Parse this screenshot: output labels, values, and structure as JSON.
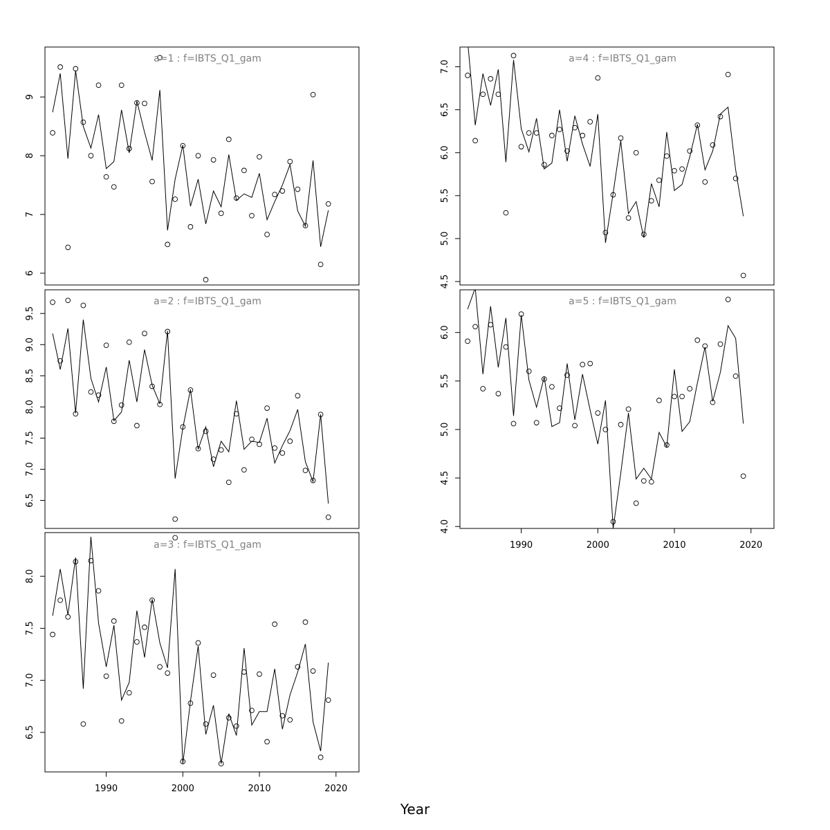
{
  "figure": {
    "xlabel": "Year"
  },
  "chart_data": [
    {
      "type": "line",
      "title": "a=1  :  f=IBTS_Q1_gam",
      "xlabel": "",
      "ylabel": "",
      "xlim": [
        1982,
        2023
      ],
      "ylim": [
        5.8,
        9.85
      ],
      "yticks": [
        "6",
        "7",
        "8",
        "9"
      ],
      "xticks": [],
      "x": [
        1983,
        1984,
        1985,
        1986,
        1987,
        1988,
        1989,
        1990,
        1991,
        1992,
        1993,
        1994,
        1995,
        1996,
        1997,
        1998,
        1999,
        2000,
        2001,
        2002,
        2003,
        2004,
        2005,
        2006,
        2007,
        2008,
        2009,
        2010,
        2011,
        2012,
        2013,
        2014,
        2015,
        2016,
        2017,
        2018,
        2019
      ],
      "series": [
        {
          "values": [
            8.74,
            9.4,
            7.95,
            9.45,
            8.5,
            8.13,
            8.7,
            7.78,
            7.9,
            8.78,
            8.05,
            8.93,
            8.4,
            7.92,
            9.12,
            6.73,
            7.6,
            8.18,
            7.14,
            7.6,
            6.84,
            7.4,
            7.13,
            8.02,
            7.24,
            7.35,
            7.29,
            7.7,
            6.91,
            7.22,
            7.5,
            7.85,
            7.06,
            6.8,
            7.92,
            6.45,
            7.07
          ]
        },
        {
          "values": [
            8.39,
            9.51,
            6.44,
            9.48,
            8.57,
            8.0,
            9.2,
            7.64,
            7.47,
            9.2,
            8.12,
            8.9,
            8.89,
            7.56,
            9.67,
            6.49,
            7.26,
            8.17,
            6.79,
            8.0,
            5.89,
            7.93,
            7.02,
            8.28,
            7.28,
            7.75,
            6.98,
            7.98,
            6.66,
            7.34,
            7.4,
            7.9,
            7.43,
            6.81,
            9.04,
            6.15,
            7.18
          ]
        }
      ]
    },
    {
      "type": "line",
      "title": "a=2  :  f=IBTS_Q1_gam",
      "xlabel": "",
      "ylabel": "",
      "xlim": [
        1982,
        2023
      ],
      "ylim": [
        6.05,
        9.88
      ],
      "yticks": [
        "6.5",
        "7.0",
        "7.5",
        "8.0",
        "8.5",
        "9.0",
        "9.5"
      ],
      "xticks": [],
      "x": [
        1983,
        1984,
        1985,
        1986,
        1987,
        1988,
        1989,
        1990,
        1991,
        1992,
        1993,
        1994,
        1995,
        1996,
        1997,
        1998,
        1999,
        2000,
        2001,
        2002,
        2003,
        2004,
        2005,
        2006,
        2007,
        2008,
        2009,
        2010,
        2011,
        2012,
        2013,
        2014,
        2015,
        2016,
        2017,
        2018,
        2019
      ],
      "series": [
        {
          "values": [
            9.18,
            8.6,
            9.26,
            7.9,
            9.4,
            8.46,
            8.08,
            8.64,
            7.78,
            7.92,
            8.75,
            8.08,
            8.92,
            8.35,
            8.05,
            9.22,
            6.85,
            7.66,
            8.28,
            7.32,
            7.68,
            7.04,
            7.45,
            7.28,
            8.1,
            7.32,
            7.45,
            7.43,
            7.82,
            7.1,
            7.38,
            7.62,
            7.96,
            7.12,
            6.8,
            7.88,
            6.45
          ]
        },
        {
          "values": [
            9.68,
            8.74,
            9.71,
            7.89,
            9.63,
            8.24,
            8.19,
            8.99,
            7.77,
            8.03,
            9.04,
            7.7,
            9.18,
            8.33,
            8.04,
            9.21,
            6.2,
            7.68,
            8.27,
            7.33,
            7.61,
            7.16,
            7.31,
            6.79,
            7.89,
            6.99,
            7.48,
            7.4,
            7.98,
            7.34,
            7.26,
            7.45,
            8.18,
            6.98,
            6.82,
            7.88,
            6.23
          ]
        }
      ]
    },
    {
      "type": "line",
      "title": "a=3  :  f=IBTS_Q1_gam",
      "xlabel": "",
      "ylabel": "",
      "xlim": [
        1982,
        2023
      ],
      "ylim": [
        6.12,
        8.42
      ],
      "yticks": [
        "6.5",
        "7.0",
        "7.5",
        "8.0"
      ],
      "xticks": [
        "1990",
        "2000",
        "2010",
        "2020"
      ],
      "x": [
        1983,
        1984,
        1985,
        1986,
        1987,
        1988,
        1989,
        1990,
        1991,
        1992,
        1993,
        1994,
        1995,
        1996,
        1997,
        1998,
        1999,
        2000,
        2001,
        2002,
        2003,
        2004,
        2005,
        2006,
        2007,
        2008,
        2009,
        2010,
        2011,
        2012,
        2013,
        2014,
        2015,
        2016,
        2017,
        2018,
        2019
      ],
      "series": [
        {
          "values": [
            7.62,
            8.07,
            7.63,
            8.18,
            6.92,
            8.38,
            7.55,
            7.13,
            7.53,
            6.81,
            6.98,
            7.67,
            7.22,
            7.78,
            7.36,
            7.12,
            8.07,
            6.2,
            6.8,
            7.33,
            6.48,
            6.76,
            6.2,
            6.68,
            6.47,
            7.31,
            6.57,
            6.7,
            6.7,
            7.11,
            6.53,
            6.86,
            7.08,
            7.35,
            6.6,
            6.32,
            7.17
          ]
        },
        {
          "values": [
            7.44,
            7.77,
            7.61,
            8.14,
            6.58,
            8.15,
            7.86,
            7.04,
            7.57,
            6.61,
            6.88,
            7.37,
            7.51,
            7.77,
            7.13,
            7.07,
            8.37,
            6.22,
            6.78,
            7.36,
            6.58,
            7.05,
            6.2,
            6.64,
            6.56,
            7.08,
            6.71,
            7.06,
            6.41,
            7.54,
            6.66,
            6.62,
            7.13,
            7.56,
            7.09,
            6.26,
            6.81
          ]
        }
      ]
    },
    {
      "type": "line",
      "title": "a=4  :  f=IBTS_Q1_gam",
      "xlabel": "",
      "ylabel": "",
      "xlim": [
        1982,
        2023
      ],
      "ylim": [
        4.46,
        7.23
      ],
      "yticks": [
        "4.5",
        "5.0",
        "5.5",
        "6.0",
        "6.5",
        "7.0"
      ],
      "xticks": [],
      "x": [
        1983,
        1984,
        1985,
        1986,
        1987,
        1988,
        1989,
        1990,
        1991,
        1992,
        1993,
        1994,
        1995,
        1996,
        1997,
        1998,
        1999,
        2000,
        2001,
        2002,
        2003,
        2004,
        2005,
        2006,
        2007,
        2008,
        2009,
        2010,
        2011,
        2012,
        2013,
        2014,
        2015,
        2016,
        2017,
        2018,
        2019
      ],
      "series": [
        {
          "values": [
            7.3,
            6.32,
            6.92,
            6.55,
            6.97,
            5.89,
            7.08,
            6.28,
            6.01,
            6.4,
            5.81,
            5.88,
            6.5,
            5.9,
            6.43,
            6.1,
            5.84,
            6.45,
            4.95,
            5.53,
            6.14,
            5.29,
            5.43,
            5.01,
            5.64,
            5.37,
            6.24,
            5.56,
            5.63,
            5.95,
            6.33,
            5.8,
            6.02,
            6.45,
            6.53,
            5.8,
            5.26
          ]
        },
        {
          "values": [
            6.9,
            6.14,
            6.68,
            6.86,
            6.68,
            5.3,
            7.13,
            6.07,
            6.23,
            6.23,
            5.86,
            6.2,
            6.27,
            6.02,
            6.29,
            6.2,
            6.36,
            6.87,
            5.07,
            5.51,
            6.17,
            5.24,
            6.0,
            5.05,
            5.44,
            5.68,
            5.96,
            5.79,
            5.81,
            6.02,
            6.32,
            5.66,
            6.09,
            6.42,
            6.91,
            5.7,
            4.57
          ]
        }
      ]
    },
    {
      "type": "line",
      "title": "a=5  :  f=IBTS_Q1_gam",
      "xlabel": "",
      "ylabel": "",
      "xlim": [
        1982,
        2023
      ],
      "ylim": [
        3.98,
        6.44
      ],
      "yticks": [
        "4.0",
        "4.5",
        "5.0",
        "5.5",
        "6.0"
      ],
      "xticks": [
        "1990",
        "2000",
        "2010",
        "2020"
      ],
      "x": [
        1983,
        1984,
        1985,
        1986,
        1987,
        1988,
        1989,
        1990,
        1991,
        1992,
        1993,
        1994,
        1995,
        1996,
        1997,
        1998,
        1999,
        2000,
        2001,
        2002,
        2003,
        2004,
        2005,
        2006,
        2007,
        2008,
        2009,
        2010,
        2011,
        2012,
        2013,
        2014,
        2015,
        2016,
        2017,
        2018,
        2019
      ],
      "series": [
        {
          "values": [
            6.24,
            6.46,
            5.57,
            6.27,
            5.64,
            6.15,
            5.14,
            6.18,
            5.51,
            5.23,
            5.54,
            5.03,
            5.07,
            5.68,
            5.1,
            5.57,
            5.2,
            4.85,
            5.3,
            3.98,
            4.55,
            5.17,
            4.49,
            4.6,
            4.49,
            4.97,
            4.82,
            5.62,
            4.98,
            5.08,
            5.48,
            5.85,
            5.29,
            5.59,
            6.07,
            5.94,
            5.06
          ]
        },
        {
          "values": [
            5.91,
            6.06,
            5.42,
            6.08,
            5.37,
            5.85,
            5.06,
            6.19,
            5.6,
            5.07,
            5.52,
            5.44,
            5.22,
            5.56,
            5.04,
            5.67,
            5.68,
            5.17,
            5.0,
            4.05,
            5.05,
            5.21,
            4.24,
            4.47,
            4.46,
            5.3,
            4.84,
            5.34,
            5.34,
            5.42,
            5.92,
            5.86,
            5.28,
            5.88,
            6.34,
            5.55,
            4.52
          ]
        }
      ]
    }
  ]
}
